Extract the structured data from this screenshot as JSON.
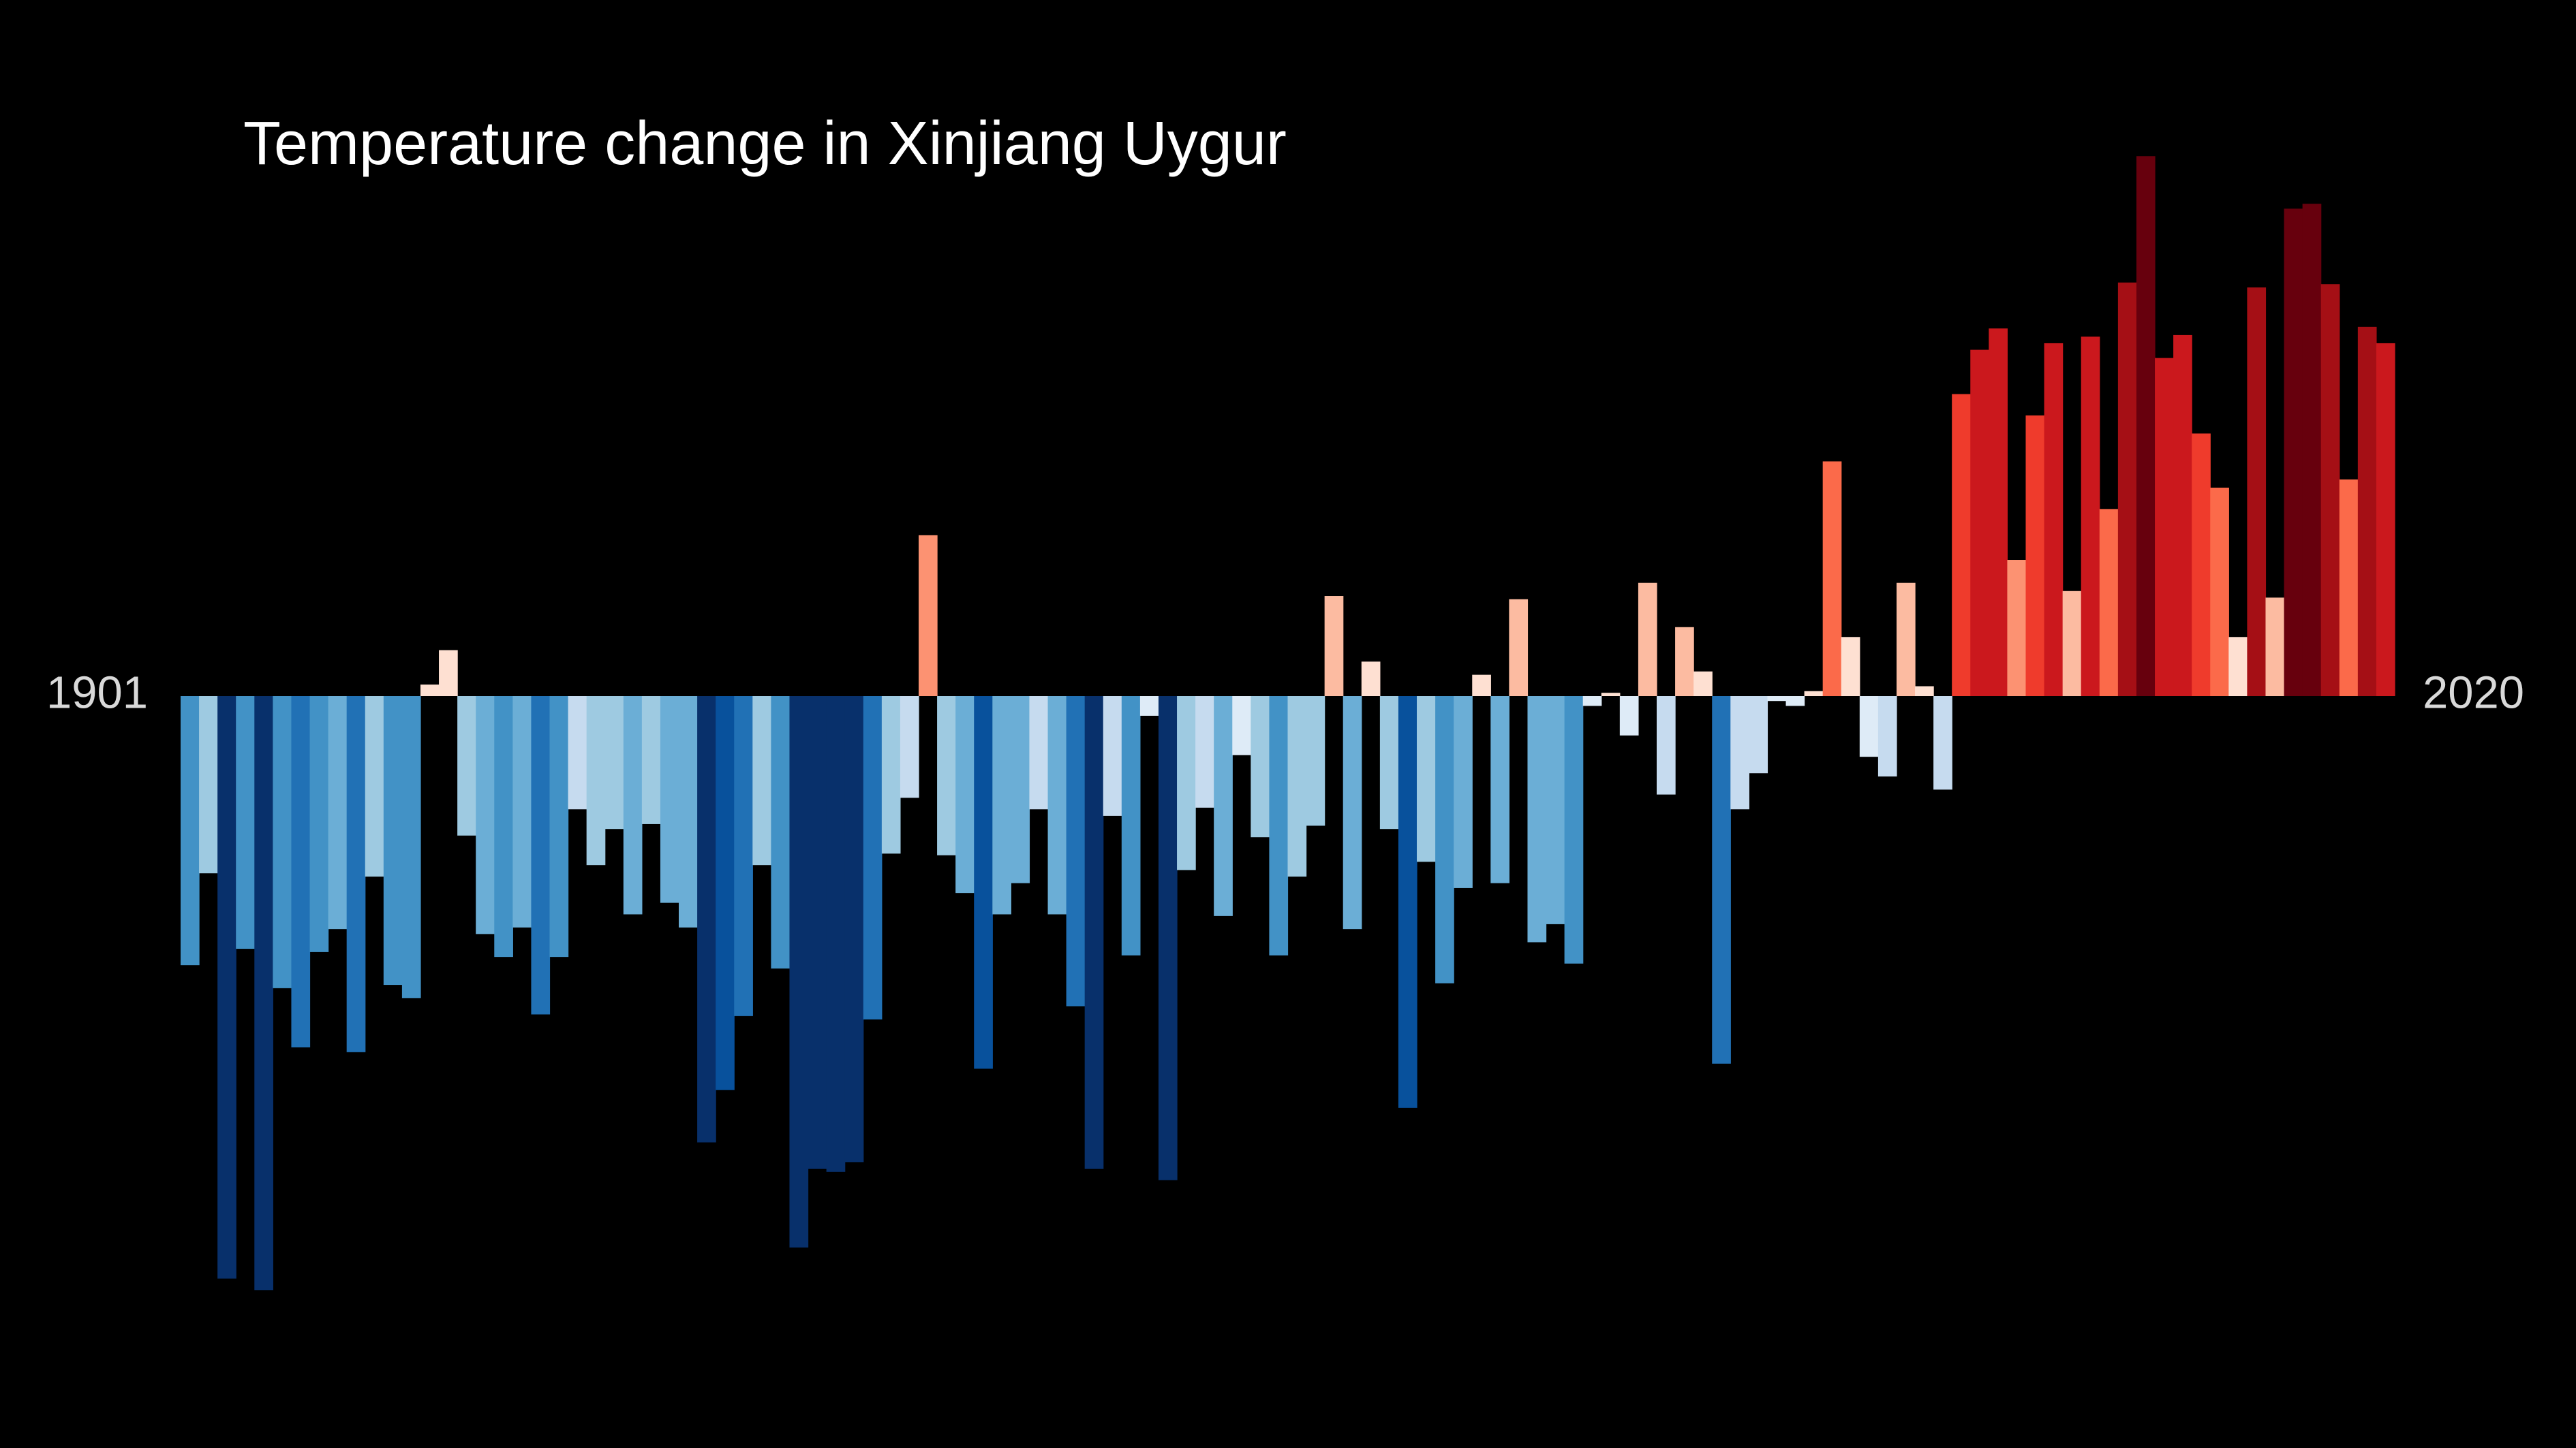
{
  "chart_data": {
    "type": "bar",
    "title": "Temperature change in Xinjiang Uygur",
    "categories": [
      "1901",
      null,
      null,
      null,
      null,
      null,
      null,
      null,
      null,
      null,
      null,
      null,
      null,
      null,
      null,
      null,
      null,
      null,
      null,
      null,
      null,
      null,
      null,
      null,
      null,
      null,
      null,
      null,
      null,
      null,
      null,
      null,
      null,
      null,
      null,
      null,
      null,
      null,
      null,
      null,
      null,
      null,
      null,
      null,
      null,
      null,
      null,
      null,
      null,
      null,
      null,
      null,
      null,
      null,
      null,
      null,
      null,
      null,
      null,
      null,
      null,
      null,
      null,
      null,
      null,
      null,
      null,
      null,
      null,
      null,
      null,
      null,
      null,
      null,
      null,
      null,
      null,
      null,
      null,
      null,
      null,
      null,
      null,
      null,
      null,
      null,
      null,
      null,
      null,
      null,
      null,
      null,
      null,
      null,
      null,
      null,
      null,
      null,
      null,
      null,
      null,
      null,
      null,
      null,
      null,
      null,
      null,
      null,
      null,
      null,
      null,
      null,
      null,
      null,
      null,
      null,
      null,
      null,
      null,
      "2020"
    ],
    "values": [
      -0.82,
      -0.54,
      -1.775,
      -0.77,
      -1.81,
      -0.89,
      -1.07,
      -0.78,
      -0.71,
      -1.085,
      -0.55,
      -0.88,
      -0.92,
      0.035,
      0.14,
      -0.425,
      -0.725,
      -0.795,
      -0.705,
      -0.97,
      -0.795,
      -0.345,
      -0.515,
      -0.405,
      -0.665,
      -0.39,
      -0.63,
      -0.705,
      -1.36,
      -1.2,
      -0.975,
      -0.515,
      -0.83,
      -1.68,
      -1.44,
      -1.45,
      -1.42,
      -0.985,
      -0.48,
      -0.31,
      0.49,
      -0.485,
      -0.6,
      -1.135,
      -0.665,
      -0.57,
      -0.345,
      -0.665,
      -0.945,
      -1.44,
      -0.365,
      -0.79,
      -0.06,
      -1.475,
      -0.53,
      -0.34,
      -0.67,
      -0.18,
      -0.43,
      -0.79,
      -0.55,
      -0.395,
      0.305,
      -0.71,
      0.105,
      -0.405,
      -1.255,
      -0.505,
      -0.875,
      -0.585,
      0.065,
      -0.57,
      0.295,
      -0.75,
      -0.695,
      -0.815,
      -0.03,
      0.01,
      -0.12,
      0.345,
      -0.3,
      0.21,
      0.075,
      -1.12,
      -0.345,
      -0.235,
      -0.015,
      -0.03,
      0.015,
      0.715,
      0.18,
      -0.185,
      -0.245,
      0.345,
      0.03,
      -0.285,
      0.92,
      1.055,
      1.12,
      0.415,
      0.855,
      1.075,
      0.32,
      1.095,
      0.57,
      1.26,
      1.645,
      1.03,
      1.1,
      0.8,
      0.635,
      0.18,
      1.245,
      0.3,
      1.485,
      1.5,
      1.255,
      0.66,
      1.125,
      1.075
    ],
    "ylim": [
      -2.1,
      2.1
    ],
    "colormap": {
      "colors": [
        "#08306b",
        "#08519c",
        "#2171b5",
        "#4292c6",
        "#6baed6",
        "#9ecae1",
        "#c6dbef",
        "#deebf7",
        "#fee0d2",
        "#fcbba1",
        "#fc9272",
        "#fb6a4a",
        "#ef3b2c",
        "#cb181d",
        "#a50f15",
        "#67000d"
      ],
      "range": [
        -1.5,
        1.5
      ]
    },
    "background": "#000000"
  }
}
